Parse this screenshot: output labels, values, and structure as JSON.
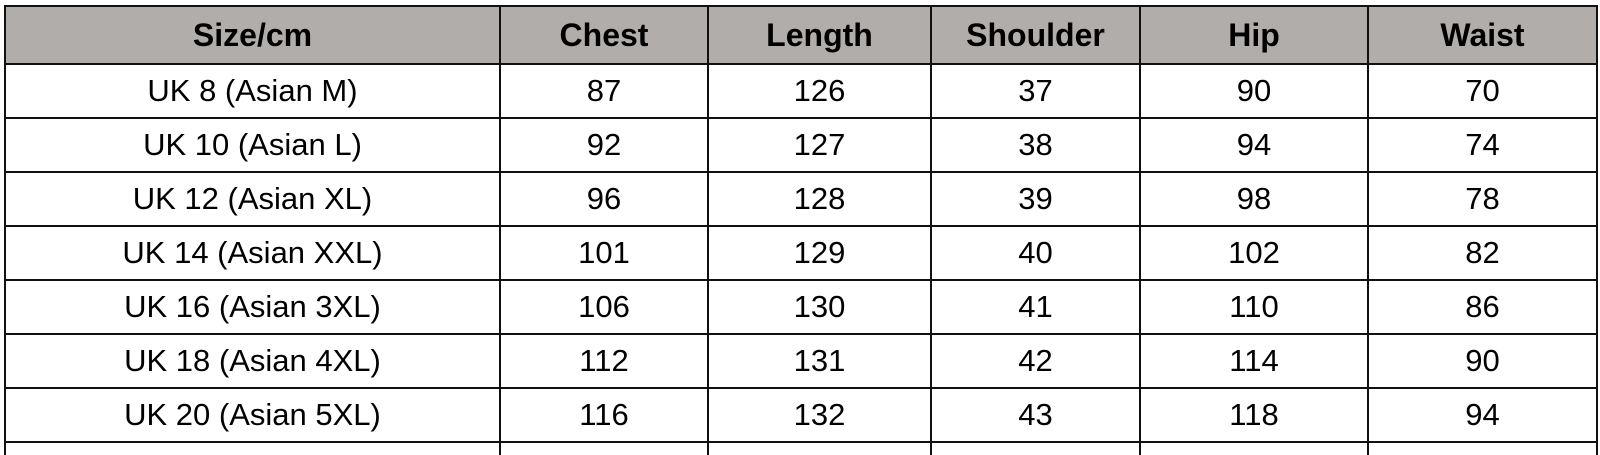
{
  "table": {
    "headers": [
      "Size/cm",
      "Chest",
      "Length",
      "Shoulder",
      "Hip",
      "Waist"
    ],
    "rows": [
      [
        "UK 8 (Asian M)",
        "87",
        "126",
        "37",
        "90",
        "70"
      ],
      [
        "UK 10 (Asian L)",
        "92",
        "127",
        "38",
        "94",
        "74"
      ],
      [
        "UK 12 (Asian XL)",
        "96",
        "128",
        "39",
        "98",
        "78"
      ],
      [
        "UK 14 (Asian XXL)",
        "101",
        "129",
        "40",
        "102",
        "82"
      ],
      [
        "UK 16 (Asian 3XL)",
        "106",
        "130",
        "41",
        "110",
        "86"
      ],
      [
        "UK 18 (Asian 4XL)",
        "112",
        "131",
        "42",
        "114",
        "90"
      ],
      [
        "UK 20 (Asian 5XL)",
        "116",
        "132",
        "43",
        "118",
        "94"
      ]
    ]
  },
  "colors": {
    "header_bg": "#b1adaa",
    "border": "#111111"
  }
}
